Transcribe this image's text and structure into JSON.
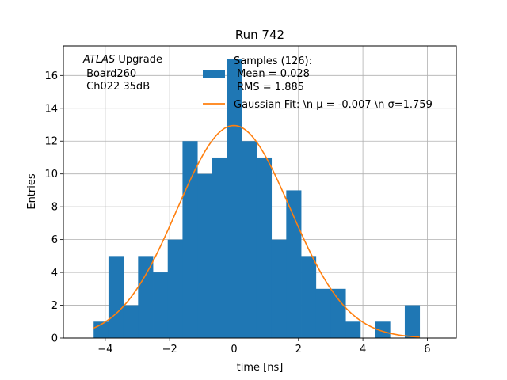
{
  "chart_data": {
    "type": "bar",
    "title": "Run 742",
    "xlabel": "time [ns]",
    "ylabel": "Entries",
    "xlim": [
      -5.3,
      6.9
    ],
    "ylim": [
      0,
      17.8
    ],
    "xticks": [
      -4,
      -2,
      0,
      2,
      4,
      6
    ],
    "yticks": [
      0,
      2,
      4,
      6,
      8,
      10,
      12,
      14,
      16
    ],
    "grid": true,
    "legend_position": "top-right",
    "bin_edges": [
      -4.36,
      -3.9,
      -3.44,
      -2.98,
      -2.52,
      -2.06,
      -1.6,
      -1.14,
      -0.68,
      -0.22,
      0.24,
      0.7,
      1.16,
      1.62,
      2.08,
      2.54,
      3.0,
      3.46,
      3.92,
      4.38,
      4.84,
      5.3,
      5.76
    ],
    "series": [
      {
        "name_lines": [
          "Samples (126):",
          " Mean = 0.028",
          " RMS = 1.885"
        ],
        "kind": "histogram",
        "color": "#1f77b4",
        "counts": [
          1,
          5,
          2,
          5,
          4,
          6,
          12,
          10,
          11,
          17,
          12,
          11,
          6,
          9,
          5,
          3,
          3,
          1,
          0,
          1,
          0,
          2
        ]
      },
      {
        "name": "Gaussian Fit: \\n μ = -0.007 \\n σ=1.759",
        "kind": "line",
        "color": "#ff7f0e",
        "mu": -0.007,
        "sigma": 1.759,
        "amplitude": 12.95,
        "x_range": [
          -4.36,
          5.76
        ]
      }
    ],
    "annotation": {
      "italic": "ATLAS",
      "rest": " Upgrade",
      "lines": [
        " Board260",
        " Ch022 35dB"
      ]
    }
  }
}
